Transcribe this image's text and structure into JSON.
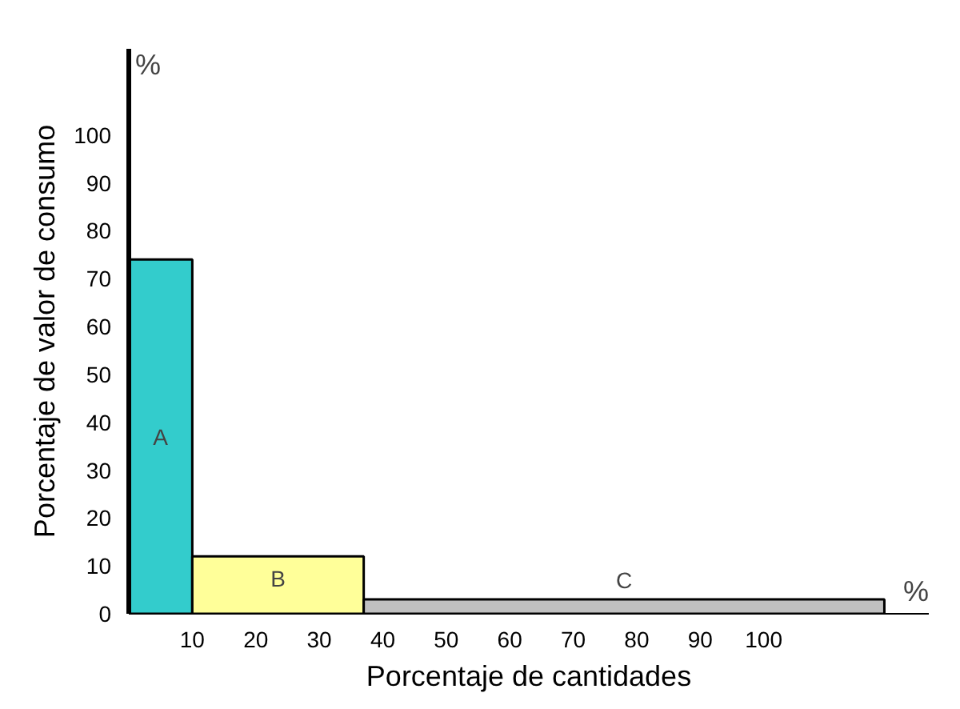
{
  "chart_data": {
    "type": "histogram",
    "xlabel": "Porcentaje de cantidades",
    "ylabel": "Porcentaje de valor de consumo",
    "bins": [
      0,
      10,
      37,
      119
    ],
    "values": [
      74,
      12,
      3
    ],
    "colors": [
      "#33cccc",
      "#ffff99",
      "#c0c0c0"
    ],
    "xlim": [
      0,
      126
    ],
    "ylim": [
      0,
      118
    ],
    "xticks": [
      10,
      20,
      30,
      40,
      50,
      60,
      70,
      80,
      90,
      100
    ],
    "yticks": [
      0,
      10,
      20,
      30,
      40,
      50,
      60,
      70,
      80,
      90,
      100
    ],
    "grid": false,
    "annotations": [
      "A",
      "B",
      "C",
      "%",
      "%"
    ]
  }
}
